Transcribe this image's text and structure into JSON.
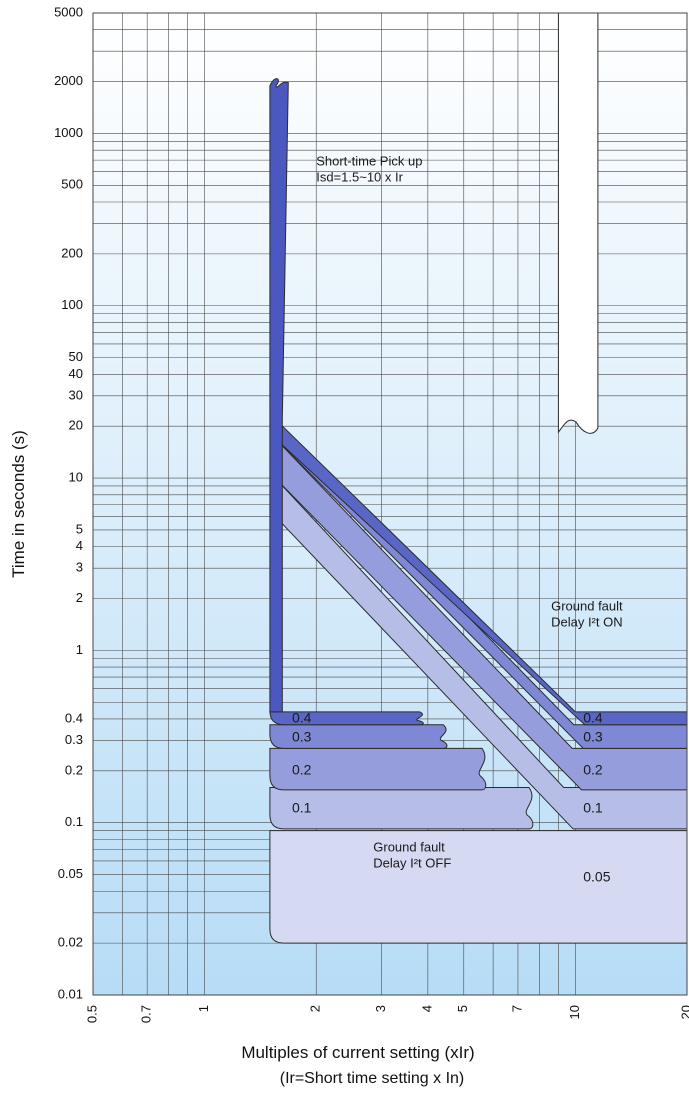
{
  "chart_data": {
    "type": "line",
    "title": "",
    "xlabel": "Multiples of current setting (xIr)",
    "xlabel_note": "(Ir=Short time setting x In)",
    "ylabel": "Time in seconds (s)",
    "x_scale": "log",
    "y_scale": "log",
    "xlim": [
      0.5,
      20
    ],
    "ylim": [
      0.01,
      5000
    ],
    "grid": true,
    "x_ticks": [
      {
        "v": 0.5,
        "label": "0.5"
      },
      {
        "v": 0.7,
        "label": "0.7"
      },
      {
        "v": 1,
        "label": "1"
      },
      {
        "v": 2,
        "label": "2"
      },
      {
        "v": 3,
        "label": "3"
      },
      {
        "v": 4,
        "label": "4"
      },
      {
        "v": 5,
        "label": "5"
      },
      {
        "v": 7,
        "label": "7"
      },
      {
        "v": 10,
        "label": "10"
      },
      {
        "v": 20,
        "label": "20"
      }
    ],
    "y_ticks": [
      {
        "v": 5000,
        "label": "5000"
      },
      {
        "v": 2000,
        "label": "2000"
      },
      {
        "v": 1000,
        "label": "1000"
      },
      {
        "v": 500,
        "label": "500"
      },
      {
        "v": 200,
        "label": "200"
      },
      {
        "v": 100,
        "label": "100"
      },
      {
        "v": 50,
        "label": "50"
      },
      {
        "v": 40,
        "label": "40"
      },
      {
        "v": 30,
        "label": "30"
      },
      {
        "v": 20,
        "label": "20"
      },
      {
        "v": 10,
        "label": "10"
      },
      {
        "v": 5,
        "label": "5"
      },
      {
        "v": 4,
        "label": "4"
      },
      {
        "v": 3,
        "label": "3"
      },
      {
        "v": 2,
        "label": "2"
      },
      {
        "v": 1,
        "label": "1"
      },
      {
        "v": 0.4,
        "label": "0.4"
      },
      {
        "v": 0.3,
        "label": "0.3"
      },
      {
        "v": 0.2,
        "label": "0.2"
      },
      {
        "v": 0.1,
        "label": "0.1"
      },
      {
        "v": 0.05,
        "label": "0.05"
      },
      {
        "v": 0.02,
        "label": "0.02"
      },
      {
        "v": 0.01,
        "label": "0.01"
      }
    ],
    "bands": [
      {
        "name": "0.05",
        "color": "#d5d9f1",
        "x_start": 1.5,
        "upper_t": 0.09,
        "lower_t": 0.02,
        "upper_x_end": 20,
        "break_x": null
      },
      {
        "name": "0.1",
        "color": "#b6bde6",
        "x_start": 1.5,
        "upper_t": 0.16,
        "lower_t": 0.092,
        "pickup_x": 1.62,
        "break_x": 7.5,
        "i2t_x0": 1.55,
        "i2t_t0_upper": 10,
        "i2t_t0_lower": 6,
        "i2t_end_x": 9.3
      },
      {
        "name": "0.2",
        "color": "#959ddc",
        "x_start": 1.5,
        "upper_t": 0.27,
        "lower_t": 0.155,
        "pickup_x": 1.62,
        "break_x": 5.6,
        "i2t_x0": 1.55,
        "i2t_t0_upper": 17,
        "i2t_t0_lower": 10,
        "i2t_end_x": 9.8
      },
      {
        "name": "0.3",
        "color": "#7e88d4",
        "x_start": 1.5,
        "upper_t": 0.37,
        "lower_t": 0.27,
        "pickup_x": 1.62,
        "break_x": 4.4,
        "i2t_x0": 1.55,
        "i2t_t0_upper": 22,
        "i2t_t0_lower": 17,
        "i2t_end_x": 9.9
      },
      {
        "name": "0.4",
        "color": "#5a66c6",
        "x_start": 1.5,
        "upper_t": 0.44,
        "lower_t": 0.37,
        "pickup_x": 1.62,
        "break_x": 3.8,
        "i2t_x0": 1.55,
        "i2t_t0_upper": 22,
        "i2t_t0_lower": 17,
        "i2t_end_x": 10
      }
    ],
    "pickup_band": {
      "x_min": 1.5,
      "x_max": 1.62,
      "t_top": 2000,
      "color": "#4a58c0"
    },
    "instant_band": {
      "x_min": 9.0,
      "x_max": 11.5,
      "t_bottom": 20,
      "t_top": 5000
    },
    "band_labels_left": [
      {
        "text": "0.4",
        "x": 1.72,
        "t": 0.4
      },
      {
        "text": "0.3",
        "x": 1.72,
        "t": 0.31
      },
      {
        "text": "0.2",
        "x": 1.72,
        "t": 0.2
      },
      {
        "text": "0.1",
        "x": 1.72,
        "t": 0.12
      }
    ],
    "band_labels_right": [
      {
        "text": "0.4",
        "x": 10.5,
        "t": 0.4
      },
      {
        "text": "0.3",
        "x": 10.5,
        "t": 0.31
      },
      {
        "text": "0.2",
        "x": 10.5,
        "t": 0.2
      },
      {
        "text": "0.1",
        "x": 10.5,
        "t": 0.12
      },
      {
        "text": "0.05",
        "x": 10.5,
        "t": 0.048
      }
    ],
    "annotations": [
      {
        "lines": [
          "Short-time Pick up",
          "Isd=1.5~10 x Ir"
        ],
        "x": 2.0,
        "t": 650
      },
      {
        "lines": [
          "Ground fault",
          "Delay I²t ON"
        ],
        "x": 8.6,
        "t": 1.7
      },
      {
        "lines": [
          "Ground fault",
          "Delay I²t OFF"
        ],
        "x": 2.85,
        "t": 0.068
      }
    ]
  }
}
